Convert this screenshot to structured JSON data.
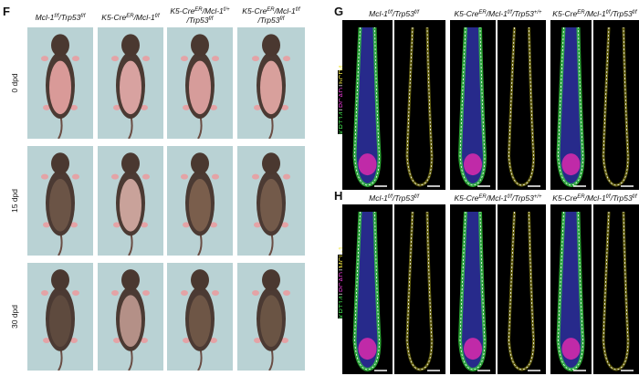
{
  "panel_f": {
    "label": "F",
    "columns": [
      [
        [
          {
            "text": "Mcl-1",
            "sup": "f/f"
          },
          {
            "text": "/Trp53",
            "sup": "f/f"
          }
        ]
      ],
      [
        [
          {
            "text": "K5-Cre",
            "sup": "ER"
          },
          {
            "text": "/Mcl-1",
            "sup": "f/f"
          }
        ]
      ],
      [
        [
          {
            "text": "K5-Cre",
            "sup": "ER"
          },
          {
            "text": "/Mcl-1",
            "sup": "f/+"
          }
        ],
        [
          {
            "text": "/Trp53",
            "sup": "f/f"
          }
        ]
      ],
      [
        [
          {
            "text": "K5-Cre",
            "sup": "ER"
          },
          {
            "text": "/Mcl-1",
            "sup": "f/f"
          }
        ],
        [
          {
            "text": "/Trp53",
            "sup": "f/f"
          }
        ]
      ]
    ],
    "rows": [
      "0 dpd",
      "15 dpd",
      "30 dpd"
    ]
  },
  "panel_g": {
    "label": "G",
    "stain": [
      "KRT14",
      "PCAD",
      "hCD4"
    ],
    "separator": "|",
    "columns": [
      [
        [
          {
            "text": "Mcl-1",
            "sup": "f/f"
          },
          {
            "text": "/Trp53",
            "sup": "f/f"
          }
        ]
      ],
      [
        [
          {
            "text": "K5-Cre",
            "sup": "ER"
          },
          {
            "text": "/Mcl-1",
            "sup": "f/f"
          },
          {
            "text": "/Trp53",
            "sup": "+/+"
          }
        ]
      ],
      [
        [
          {
            "text": "K5-Cre",
            "sup": "ER"
          },
          {
            "text": "/Mcl-1",
            "sup": "f/f"
          },
          {
            "text": "/Trp53",
            "sup": "f/f"
          }
        ]
      ]
    ]
  },
  "panel_h": {
    "label": "H",
    "stain": [
      "KRT14",
      "PCAD",
      "MCL-1"
    ],
    "separator": "|",
    "columns": [
      [
        [
          {
            "text": "Mcl-1",
            "sup": "f/f"
          },
          {
            "text": "/Trp53",
            "sup": "f/f"
          }
        ]
      ],
      [
        [
          {
            "text": "K5-Cre",
            "sup": "ER"
          },
          {
            "text": "/Mcl-1",
            "sup": "f/f"
          },
          {
            "text": "/Trp53",
            "sup": "+/+"
          }
        ]
      ],
      [
        [
          {
            "text": "K5-Cre",
            "sup": "ER"
          },
          {
            "text": "/Mcl-1",
            "sup": "f/f"
          },
          {
            "text": "/Trp53",
            "sup": "f/f"
          }
        ]
      ]
    ]
  }
}
